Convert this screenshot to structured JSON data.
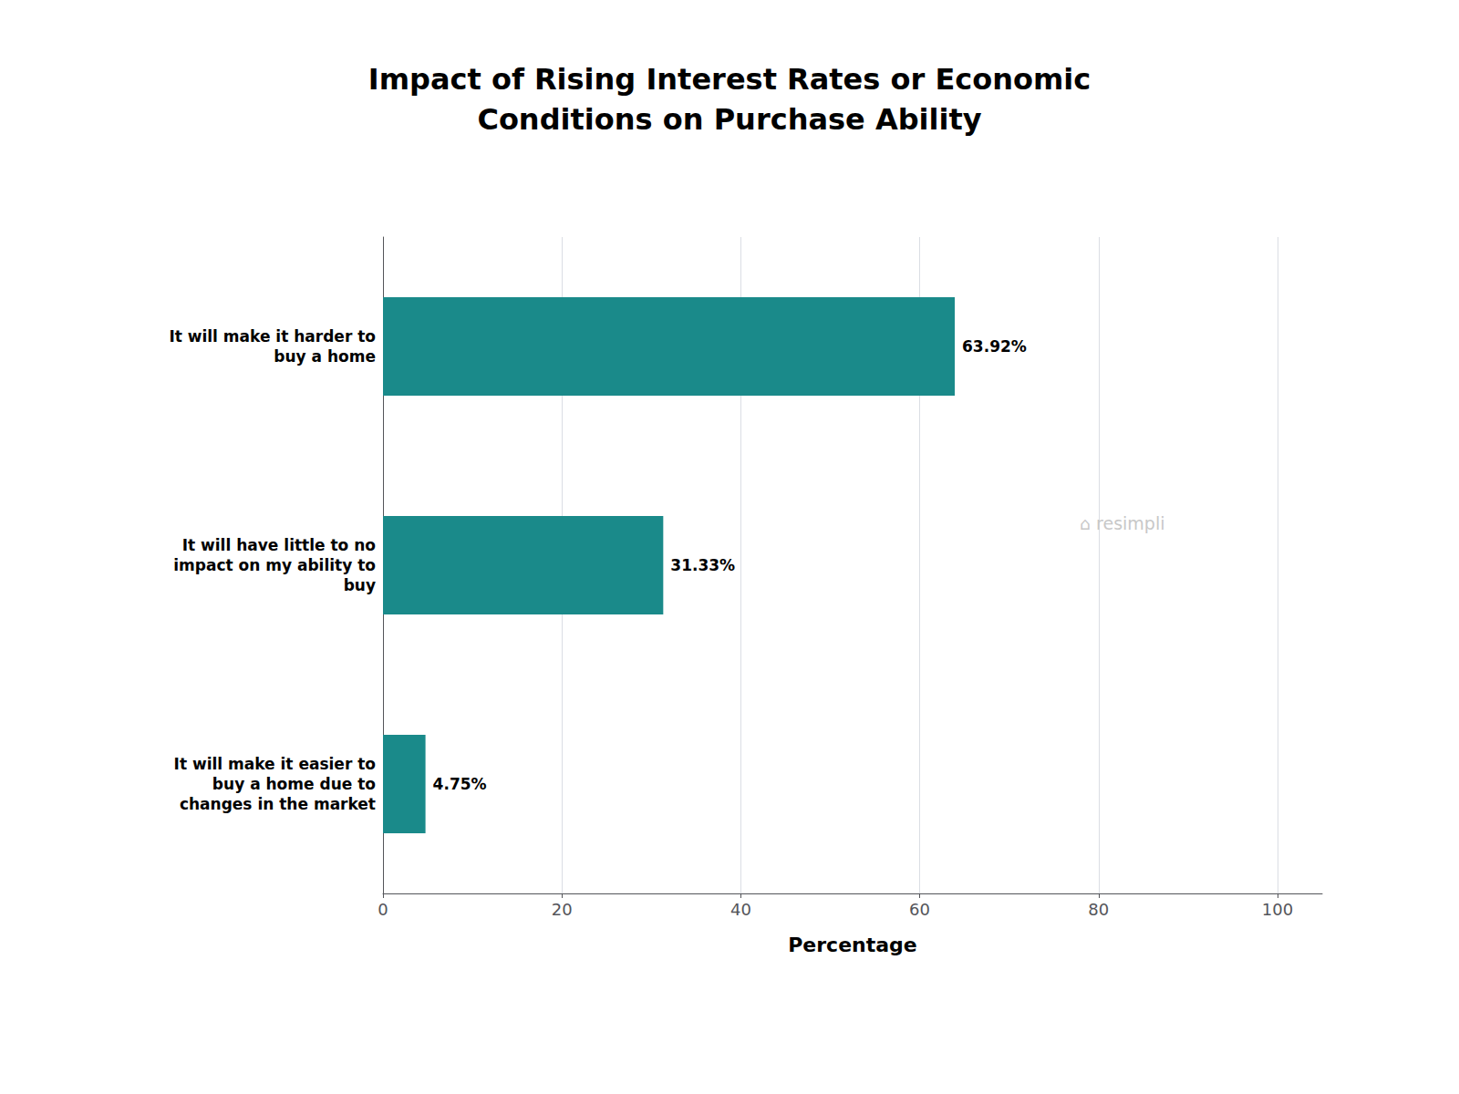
{
  "chart_data": {
    "type": "bar",
    "orientation": "horizontal",
    "title": "Impact of Rising Interest Rates or Economic\nConditions on Purchase Ability",
    "categories": [
      "It will make it harder to\nbuy a home",
      "It will have little to no\nimpact on my ability to\nbuy",
      "It will make it easier to\nbuy a home due to\nchanges in the market"
    ],
    "values": [
      63.92,
      31.33,
      4.75
    ],
    "value_labels": [
      "63.92%",
      "31.33%",
      "4.75%"
    ],
    "data_labels": true,
    "color": "#1a8a8a",
    "xlabel": "Percentage",
    "xlim": [
      0,
      105
    ],
    "xticks": [
      0,
      20,
      40,
      60,
      80,
      100
    ],
    "grid": true,
    "annotations": [
      {
        "text": "⌂ resimpli",
        "color": "#c8c8c8"
      }
    ]
  }
}
